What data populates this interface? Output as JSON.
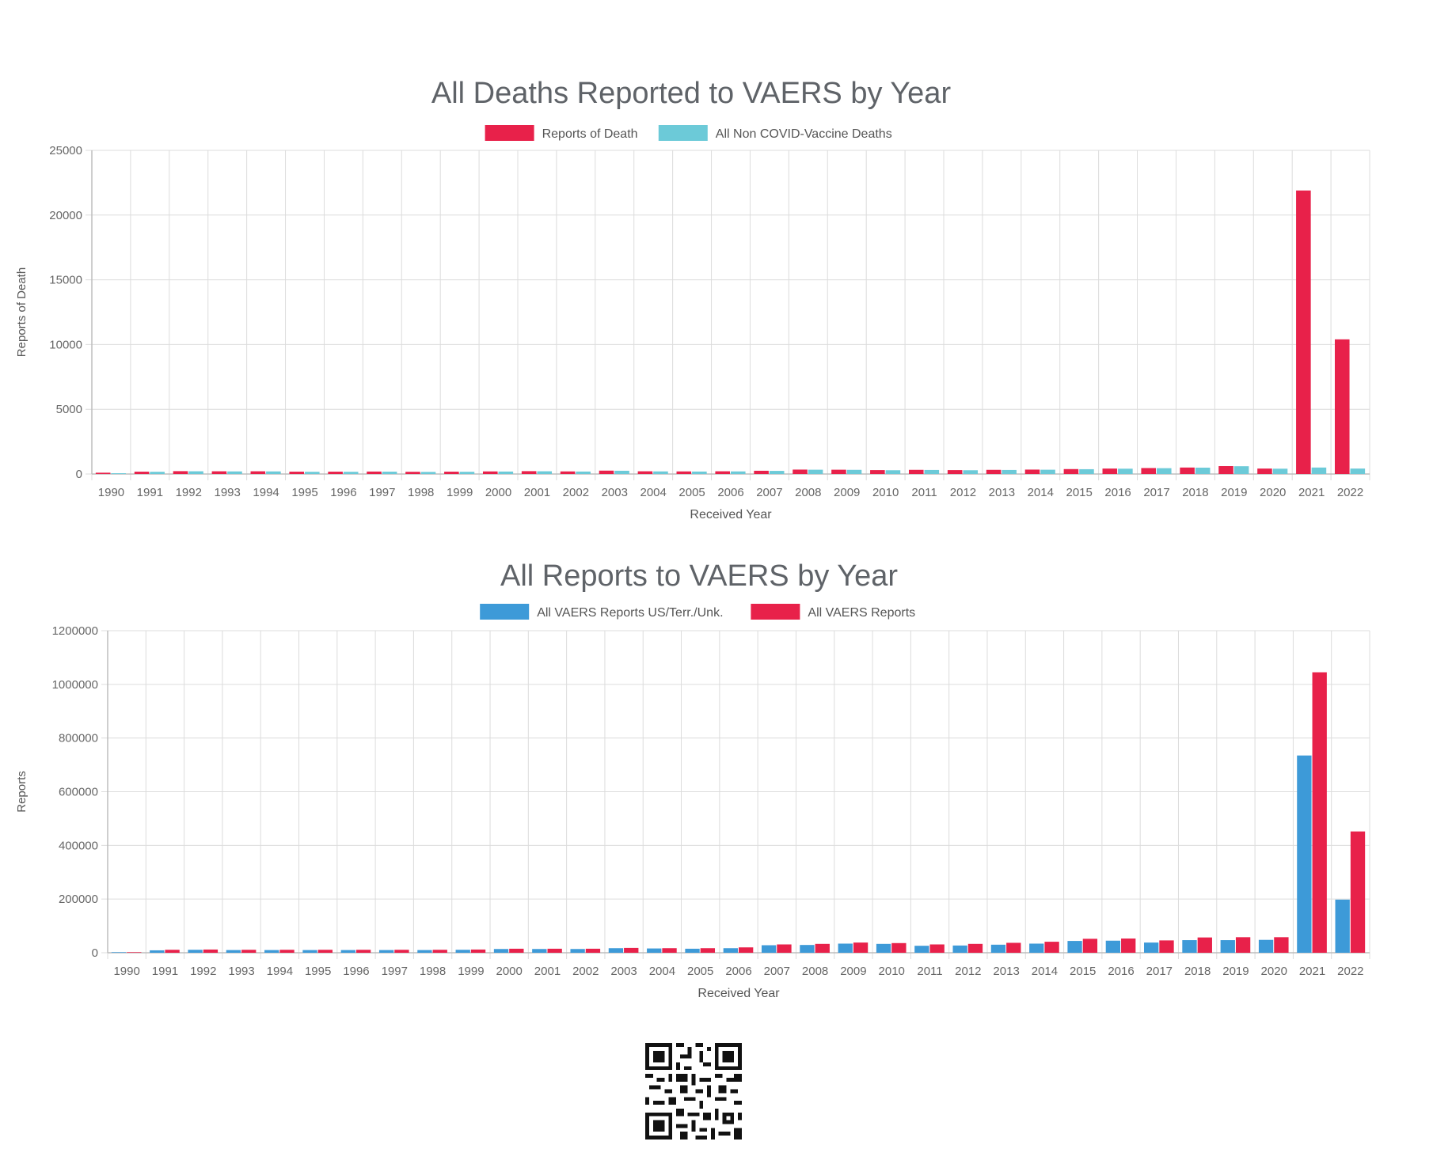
{
  "chart_data": [
    {
      "type": "bar",
      "title": "All Deaths Reported to VAERS by Year",
      "xlabel": "Received Year",
      "ylabel": "Reports of Death",
      "ylim": [
        0,
        25000
      ],
      "yticks": [
        0,
        5000,
        10000,
        15000,
        20000,
        25000
      ],
      "grid": true,
      "legend": "top-center",
      "categories": [
        "1990",
        "1991",
        "1992",
        "1993",
        "1994",
        "1995",
        "1996",
        "1997",
        "1998",
        "1999",
        "2000",
        "2001",
        "2002",
        "2003",
        "2004",
        "2005",
        "2006",
        "2007",
        "2008",
        "2009",
        "2010",
        "2011",
        "2012",
        "2013",
        "2014",
        "2015",
        "2016",
        "2017",
        "2018",
        "2019",
        "2020",
        "2021",
        "2022"
      ],
      "series": [
        {
          "name": "Reports of Death",
          "color": "#e8214a",
          "values": [
            100,
            180,
            220,
            210,
            210,
            180,
            180,
            190,
            170,
            180,
            200,
            220,
            200,
            260,
            210,
            200,
            210,
            250,
            340,
            330,
            300,
            320,
            300,
            320,
            340,
            380,
            420,
            460,
            500,
            610,
            420,
            21900,
            10400
          ]
        },
        {
          "name": "All Non COVID-Vaccine Deaths",
          "color": "#6ccad8",
          "values": [
            60,
            170,
            210,
            200,
            200,
            170,
            170,
            180,
            160,
            170,
            190,
            210,
            190,
            250,
            200,
            190,
            200,
            240,
            330,
            320,
            290,
            310,
            290,
            310,
            330,
            370,
            410,
            450,
            490,
            600,
            410,
            500,
            420
          ]
        }
      ]
    },
    {
      "type": "bar",
      "title": "All Reports to VAERS by Year",
      "xlabel": "Received Year",
      "ylabel": "Reports",
      "ylim": [
        0,
        1200000
      ],
      "yticks": [
        0,
        200000,
        400000,
        600000,
        800000,
        1000000,
        1200000
      ],
      "grid": true,
      "legend": "top-center",
      "categories": [
        "1990",
        "1991",
        "1992",
        "1993",
        "1994",
        "1995",
        "1996",
        "1997",
        "1998",
        "1999",
        "2000",
        "2001",
        "2002",
        "2003",
        "2004",
        "2005",
        "2006",
        "2007",
        "2008",
        "2009",
        "2010",
        "2011",
        "2012",
        "2013",
        "2014",
        "2015",
        "2016",
        "2017",
        "2018",
        "2019",
        "2020",
        "2021",
        "2022"
      ],
      "series": [
        {
          "name": "All VAERS Reports US/Terr./Unk.",
          "color": "#3d9ad8",
          "values": [
            2000,
            9000,
            11000,
            10000,
            10000,
            10000,
            10000,
            10000,
            10000,
            11000,
            14000,
            14000,
            14000,
            17000,
            16000,
            15000,
            17000,
            28000,
            29000,
            34000,
            33000,
            26000,
            27000,
            30000,
            34000,
            44000,
            45000,
            38000,
            47000,
            47000,
            48000,
            735000,
            198000
          ]
        },
        {
          "name": "All VAERS Reports",
          "color": "#e8214a",
          "values": [
            2000,
            11000,
            12000,
            11000,
            11000,
            11000,
            11000,
            11000,
            11000,
            12000,
            15000,
            15000,
            15000,
            18000,
            17000,
            17000,
            20000,
            31000,
            33000,
            38000,
            36000,
            31000,
            33000,
            37000,
            41000,
            52000,
            53000,
            46000,
            57000,
            58000,
            58000,
            1045000,
            452000
          ]
        }
      ]
    }
  ]
}
